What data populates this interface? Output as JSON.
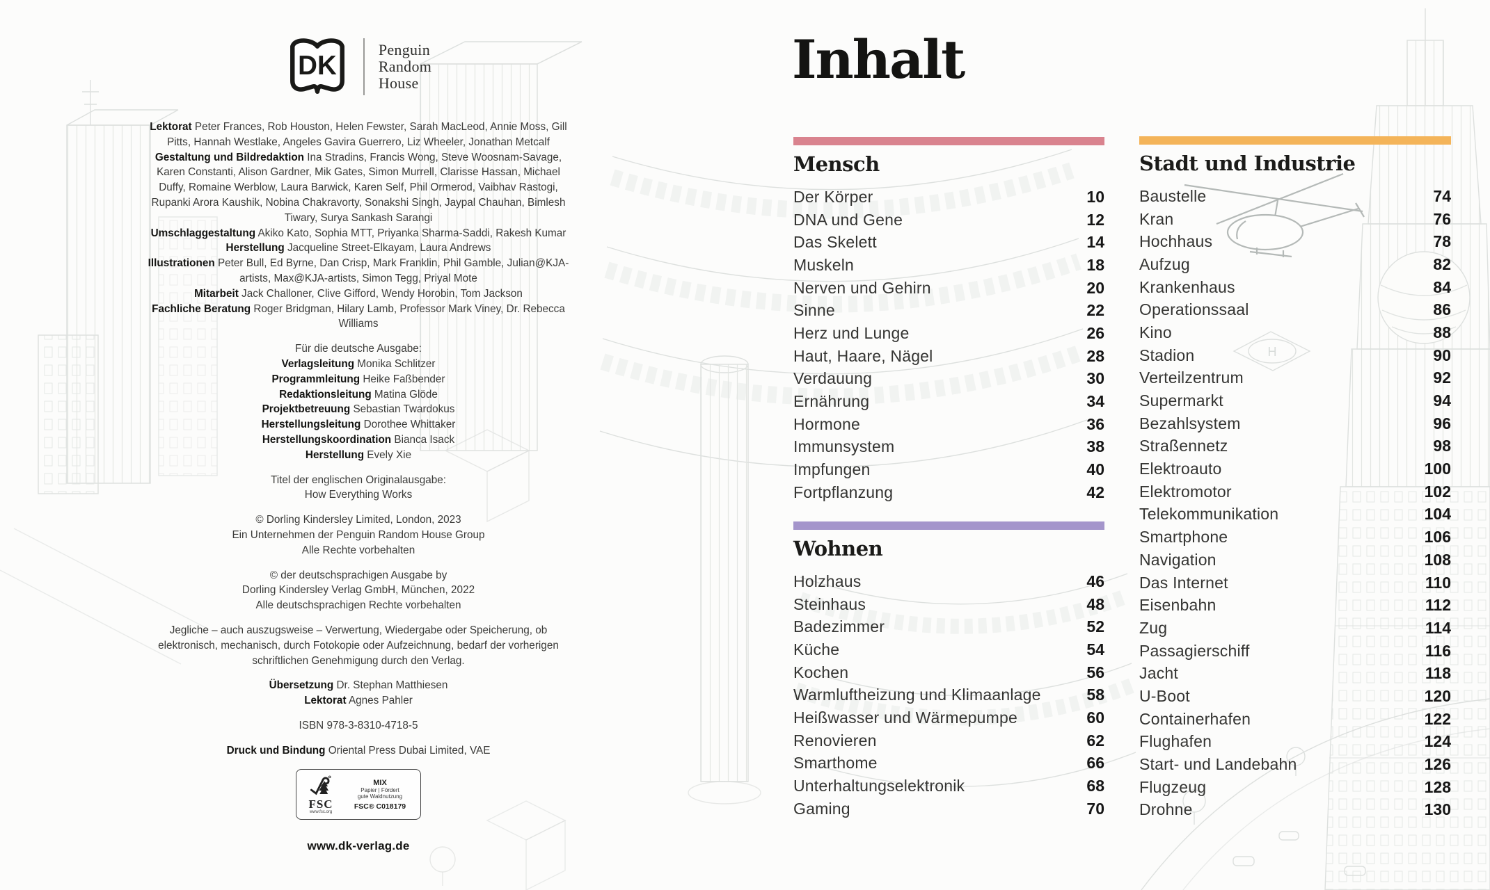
{
  "page": {
    "title": "Inhalt"
  },
  "logo": {
    "dk_label": "DK",
    "publisher": [
      "Penguin",
      "Random",
      "House"
    ]
  },
  "imprint": {
    "website": "www.dk-verlag.de",
    "paragraphs": [
      {
        "gap": false,
        "segs": [
          {
            "b": "Lektorat",
            "t": " Peter Frances, Rob Houston, Helen Fewster, Sarah MacLeod, Annie Moss, Gill Pitts, Hannah Westlake, Angeles Gavira Guerrero, Liz Wheeler, Jonathan Metcalf"
          }
        ]
      },
      {
        "gap": false,
        "segs": [
          {
            "b": "Gestaltung und Bildredaktion",
            "t": " Ina Stradins, Francis Wong, Steve Woosnam-Savage, Karen Constanti, Alison Gardner, Mik Gates, Simon Murrell, Clarisse Hassan, Michael Duffy, Romaine Werblow, Laura Barwick, Karen Self, Phil Ormerod, Vaibhav Rastogi, Rupanki Arora Kaushik, Nobina Chakravorty, Sonakshi Singh, Jaypal Chauhan, Bimlesh Tiwary, Surya Sankash Sarangi"
          }
        ]
      },
      {
        "gap": false,
        "segs": [
          {
            "b": "Umschlaggestaltung",
            "t": " Akiko Kato, Sophia MTT, Priyanka Sharma-Saddi, Rakesh Kumar"
          }
        ]
      },
      {
        "gap": false,
        "segs": [
          {
            "b": "Herstellung",
            "t": " Jacqueline Street-Elkayam, Laura Andrews"
          }
        ]
      },
      {
        "gap": false,
        "segs": [
          {
            "b": "Illustrationen",
            "t": " Peter Bull, Ed Byrne, Dan Crisp, Mark Franklin, Phil Gamble, Julian@KJA-artists, Max@KJA-artists, Simon Tegg, Priyal Mote"
          }
        ]
      },
      {
        "gap": false,
        "segs": [
          {
            "b": "Mitarbeit",
            "t": " Jack Challoner, Clive Gifford, Wendy Horobin, Tom Jackson"
          }
        ]
      },
      {
        "gap": false,
        "segs": [
          {
            "b": "Fachliche Beratung",
            "t": " Roger Bridgman, Hilary Lamb, Professor Mark Viney, Dr. Rebecca Williams"
          }
        ]
      },
      {
        "gap": true,
        "segs": [
          {
            "t": "Für die deutsche Ausgabe:"
          }
        ]
      },
      {
        "gap": false,
        "segs": [
          {
            "b": "Verlagsleitung",
            "t": " Monika Schlitzer"
          }
        ]
      },
      {
        "gap": false,
        "segs": [
          {
            "b": "Programmleitung",
            "t": " Heike Faßbender"
          }
        ]
      },
      {
        "gap": false,
        "segs": [
          {
            "b": "Redaktionsleitung",
            "t": " Matina Glöde"
          }
        ]
      },
      {
        "gap": false,
        "segs": [
          {
            "b": "Projektbetreuung",
            "t": " Sebastian Twardokus"
          }
        ]
      },
      {
        "gap": false,
        "segs": [
          {
            "b": "Herstellungsleitung",
            "t": " Dorothee Whittaker"
          }
        ]
      },
      {
        "gap": false,
        "segs": [
          {
            "b": "Herstellungskoordination",
            "t": " Bianca Isack"
          }
        ]
      },
      {
        "gap": false,
        "segs": [
          {
            "b": "Herstellung",
            "t": " Evely Xie"
          }
        ]
      },
      {
        "gap": true,
        "segs": [
          {
            "t": "Titel der englischen Originalausgabe:"
          }
        ]
      },
      {
        "gap": false,
        "segs": [
          {
            "t": "How Everything Works"
          }
        ]
      },
      {
        "gap": true,
        "segs": [
          {
            "t": "© Dorling Kindersley Limited, London, 2023"
          }
        ]
      },
      {
        "gap": false,
        "segs": [
          {
            "t": "Ein Unternehmen der Penguin Random House Group"
          }
        ]
      },
      {
        "gap": false,
        "segs": [
          {
            "t": "Alle Rechte vorbehalten"
          }
        ]
      },
      {
        "gap": true,
        "segs": [
          {
            "t": "© der deutschsprachigen Ausgabe by"
          }
        ]
      },
      {
        "gap": false,
        "segs": [
          {
            "t": "Dorling Kindersley Verlag GmbH, München, 2022"
          }
        ]
      },
      {
        "gap": false,
        "segs": [
          {
            "t": "Alle deutschsprachigen Rechte vorbehalten"
          }
        ]
      },
      {
        "gap": true,
        "segs": [
          {
            "t": "Jegliche – auch auszugsweise – Verwertung, Wiedergabe oder Speicherung, ob elektronisch, mechanisch, durch Fotokopie oder Aufzeichnung, bedarf der vorherigen schriftlichen Genehmigung durch den Verlag."
          }
        ]
      },
      {
        "gap": true,
        "segs": [
          {
            "b": "Übersetzung",
            "t": " Dr. Stephan Matthiesen"
          }
        ]
      },
      {
        "gap": false,
        "segs": [
          {
            "b": "Lektorat",
            "t": " Agnes Pahler"
          }
        ]
      },
      {
        "gap": true,
        "segs": [
          {
            "t": "ISBN 978-3-8310-4718-5"
          }
        ]
      },
      {
        "gap": true,
        "segs": [
          {
            "b": "Druck und Bindung",
            "t": " Oriental Press Dubai Limited, VAE"
          }
        ]
      }
    ]
  },
  "fsc": {
    "brand": "FSC",
    "url": "www.fsc.org",
    "mix": "MIX",
    "line1": "Papier | Fördert",
    "line2": "gute Waldnutzung",
    "code": "FSC® C018179"
  },
  "sections": [
    {
      "name": "Mensch",
      "color": "#d9838e",
      "entries": [
        {
          "label": "Der Körper",
          "page": "10"
        },
        {
          "label": "DNA und Gene",
          "page": "12"
        },
        {
          "label": "Das Skelett",
          "page": "14"
        },
        {
          "label": "Muskeln",
          "page": "18"
        },
        {
          "label": "Nerven und Gehirn",
          "page": "20"
        },
        {
          "label": "Sinne",
          "page": "22"
        },
        {
          "label": "Herz und Lunge",
          "page": "26"
        },
        {
          "label": "Haut, Haare, Nägel",
          "page": "28"
        },
        {
          "label": "Verdauung",
          "page": "30"
        },
        {
          "label": "Ernährung",
          "page": "34"
        },
        {
          "label": "Hormone",
          "page": "36"
        },
        {
          "label": "Immunsystem",
          "page": "38"
        },
        {
          "label": "Impfungen",
          "page": "40"
        },
        {
          "label": "Fortpflanzung",
          "page": "42"
        }
      ]
    },
    {
      "name": "Wohnen",
      "color": "#a495cb",
      "entries": [
        {
          "label": "Holzhaus",
          "page": "46"
        },
        {
          "label": "Steinhaus",
          "page": "48"
        },
        {
          "label": "Badezimmer",
          "page": "52"
        },
        {
          "label": "Küche",
          "page": "54"
        },
        {
          "label": "Kochen",
          "page": "56"
        },
        {
          "label": "Warmluftheizung und Klimaanlage",
          "page": "58"
        },
        {
          "label": "Heißwasser und Wärmepumpe",
          "page": "60"
        },
        {
          "label": "Renovieren",
          "page": "62"
        },
        {
          "label": "Smarthome",
          "page": "66"
        },
        {
          "label": "Unterhaltungselektronik",
          "page": "68"
        },
        {
          "label": "Gaming",
          "page": "70"
        }
      ]
    },
    {
      "name": "Stadt und Industrie",
      "color": "#f4b459",
      "entries": [
        {
          "label": "Baustelle",
          "page": "74"
        },
        {
          "label": "Kran",
          "page": "76"
        },
        {
          "label": "Hochhaus",
          "page": "78"
        },
        {
          "label": "Aufzug",
          "page": "82"
        },
        {
          "label": "Krankenhaus",
          "page": "84"
        },
        {
          "label": "Operationssaal",
          "page": "86"
        },
        {
          "label": "Kino",
          "page": "88"
        },
        {
          "label": "Stadion",
          "page": "90"
        },
        {
          "label": "Verteilzentrum",
          "page": "92"
        },
        {
          "label": "Supermarkt",
          "page": "94"
        },
        {
          "label": "Bezahlsystem",
          "page": "96"
        },
        {
          "label": "Straßennetz",
          "page": "98"
        },
        {
          "label": "Elektroauto",
          "page": "100"
        },
        {
          "label": "Elektromotor",
          "page": "102"
        },
        {
          "label": "Telekommunikation",
          "page": "104"
        },
        {
          "label": "Smartphone",
          "page": "106"
        },
        {
          "label": "Navigation",
          "page": "108"
        },
        {
          "label": "Das Internet",
          "page": "110"
        },
        {
          "label": "Eisenbahn",
          "page": "112"
        },
        {
          "label": "Zug",
          "page": "114"
        },
        {
          "label": "Passagierschiff",
          "page": "116"
        },
        {
          "label": "Jacht",
          "page": "118"
        },
        {
          "label": "U-Boot",
          "page": "120"
        },
        {
          "label": "Containerhafen",
          "page": "122"
        },
        {
          "label": "Flughafen",
          "page": "124"
        },
        {
          "label": "Start- und Landebahn",
          "page": "126"
        },
        {
          "label": "Flugzeug",
          "page": "128"
        },
        {
          "label": "Drohne",
          "page": "130"
        }
      ]
    }
  ]
}
